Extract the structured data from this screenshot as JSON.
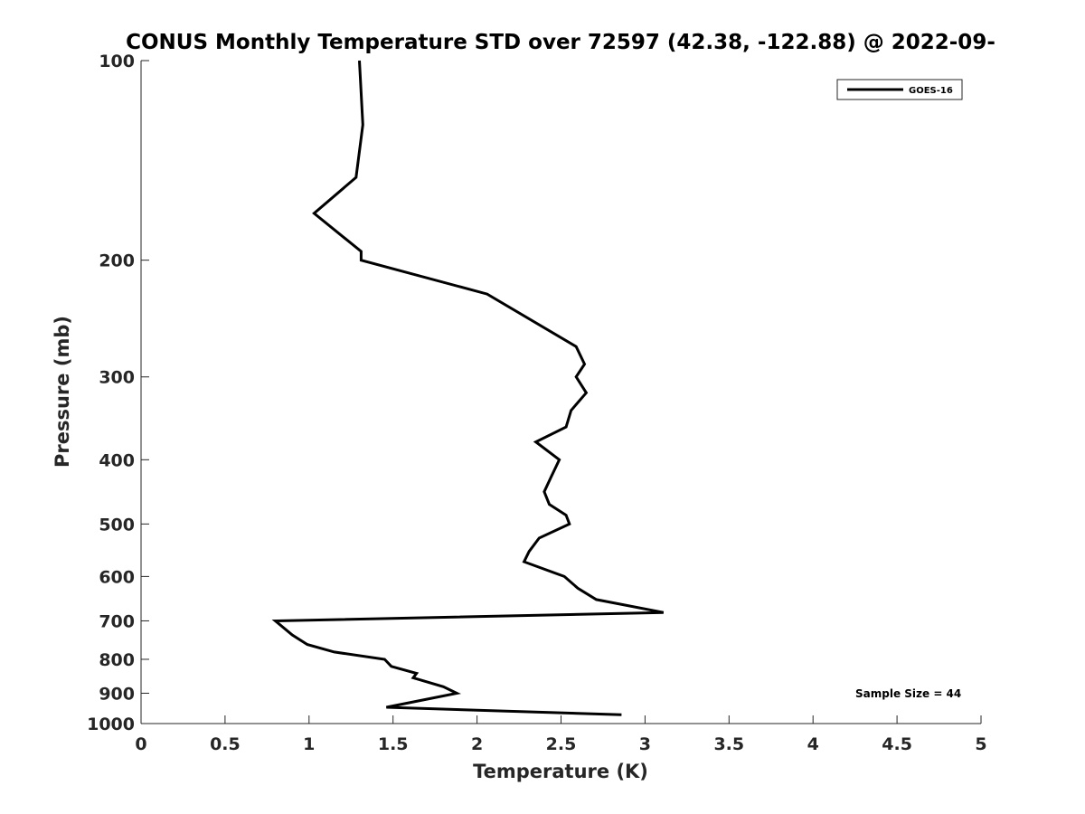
{
  "chart_data": {
    "type": "line",
    "title": "CONUS Monthly Temperature STD over 72597 (42.38, -122.88) @ 2022-09-",
    "xlabel": "Temperature (K)",
    "ylabel": "Pressure (mb)",
    "xlim": [
      0,
      5
    ],
    "ylim": [
      100,
      1000
    ],
    "y_scale": "log",
    "y_reversed": true,
    "grid": false,
    "legend_position": "top-right",
    "x_ticks": [
      0,
      0.5,
      1,
      1.5,
      2,
      2.5,
      3,
      3.5,
      4,
      4.5,
      5
    ],
    "x_tick_labels": [
      "0",
      "0.5",
      "1",
      "1.5",
      "2",
      "2.5",
      "3",
      "3.5",
      "4",
      "4.5",
      "5"
    ],
    "y_ticks": [
      100,
      200,
      300,
      400,
      500,
      600,
      700,
      800,
      900,
      1000
    ],
    "y_tick_labels": [
      "100",
      "200",
      "300",
      "400",
      "500",
      "600",
      "700",
      "800",
      "900",
      "1000"
    ],
    "series": [
      {
        "name": "GOES-16",
        "color": "#000000",
        "points": [
          {
            "x": 1.3,
            "y": 100
          },
          {
            "x": 1.32,
            "y": 125
          },
          {
            "x": 1.28,
            "y": 150
          },
          {
            "x": 1.03,
            "y": 170
          },
          {
            "x": 1.31,
            "y": 194
          },
          {
            "x": 1.31,
            "y": 200
          },
          {
            "x": 2.06,
            "y": 225
          },
          {
            "x": 2.59,
            "y": 270
          },
          {
            "x": 2.64,
            "y": 287
          },
          {
            "x": 2.59,
            "y": 300
          },
          {
            "x": 2.65,
            "y": 317
          },
          {
            "x": 2.56,
            "y": 337
          },
          {
            "x": 2.53,
            "y": 357
          },
          {
            "x": 2.35,
            "y": 376
          },
          {
            "x": 2.49,
            "y": 400
          },
          {
            "x": 2.44,
            "y": 425
          },
          {
            "x": 2.4,
            "y": 447
          },
          {
            "x": 2.43,
            "y": 467
          },
          {
            "x": 2.53,
            "y": 485
          },
          {
            "x": 2.55,
            "y": 500
          },
          {
            "x": 2.37,
            "y": 525
          },
          {
            "x": 2.31,
            "y": 550
          },
          {
            "x": 2.28,
            "y": 570
          },
          {
            "x": 2.52,
            "y": 600
          },
          {
            "x": 2.6,
            "y": 625
          },
          {
            "x": 2.71,
            "y": 650
          },
          {
            "x": 3.11,
            "y": 680
          },
          {
            "x": 0.8,
            "y": 700
          },
          {
            "x": 0.9,
            "y": 735
          },
          {
            "x": 0.99,
            "y": 760
          },
          {
            "x": 1.15,
            "y": 780
          },
          {
            "x": 1.45,
            "y": 800
          },
          {
            "x": 1.49,
            "y": 820
          },
          {
            "x": 1.64,
            "y": 840
          },
          {
            "x": 1.62,
            "y": 853
          },
          {
            "x": 1.8,
            "y": 880
          },
          {
            "x": 1.88,
            "y": 900
          },
          {
            "x": 1.69,
            "y": 920
          },
          {
            "x": 1.46,
            "y": 945
          },
          {
            "x": 2.86,
            "y": 970
          }
        ]
      }
    ],
    "annotations": [
      "Sample Size = 44"
    ]
  }
}
